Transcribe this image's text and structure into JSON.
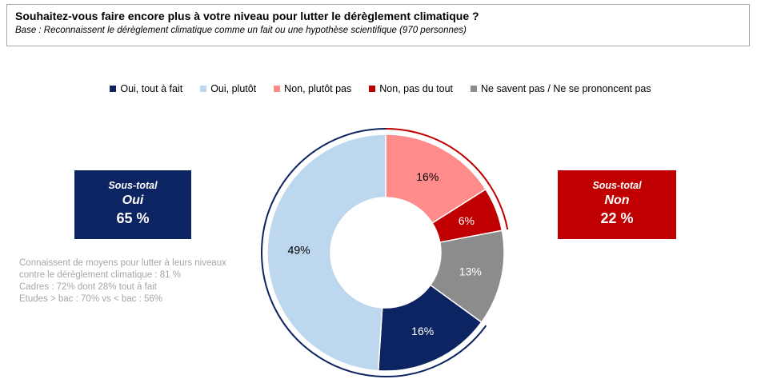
{
  "header": {
    "title": "Souhaitez-vous faire encore plus à votre niveau pour lutter le dérèglement climatique ?",
    "subtitle": "Base : Reconnaissent le dérèglement climatique comme un fait ou une hypothèse scientifique (970 personnes)"
  },
  "chart_data": {
    "type": "pie",
    "subtype": "donut",
    "title": "Souhaitez-vous faire encore plus à votre niveau pour lutter le dérèglement climatique ?",
    "legend_position": "top",
    "slices": [
      {
        "label": "Oui, tout à fait",
        "value": 16,
        "value_label": "16%",
        "color": "#0c2461",
        "label_color": "#ffffff"
      },
      {
        "label": "Oui, plutôt",
        "value": 49,
        "value_label": "49%",
        "color": "#bdd7ee",
        "label_color": "#000000"
      },
      {
        "label": "Non, plutôt pas",
        "value": 16,
        "value_label": "16%",
        "color": "#ff8b8b",
        "label_color": "#000000"
      },
      {
        "label": "Non, pas du tout",
        "value": 6,
        "value_label": "6%",
        "color": "#c00000",
        "label_color": "#ffffff"
      },
      {
        "label": "Ne savent pas / Ne se prononcent pas",
        "value": 13,
        "value_label": "13%",
        "color": "#8c8c8c",
        "label_color": "#ffffff"
      }
    ]
  },
  "subtotals": {
    "oui": {
      "label": "Sous-total",
      "name": "Oui",
      "value": "65 %",
      "color": "#0c2461"
    },
    "non": {
      "label": "Sous-total",
      "name": "Non",
      "value": "22 %",
      "color": "#c00000"
    }
  },
  "notes": {
    "line1": "Connaissent de moyens pour lutter à leurs niveaux",
    "line2": "contre le dérèglement climatique : 81 %",
    "line3": "Cadres : 72% dont 28% tout à fait",
    "line4": "Etudes > bac : 70% vs < bac : 56%"
  }
}
